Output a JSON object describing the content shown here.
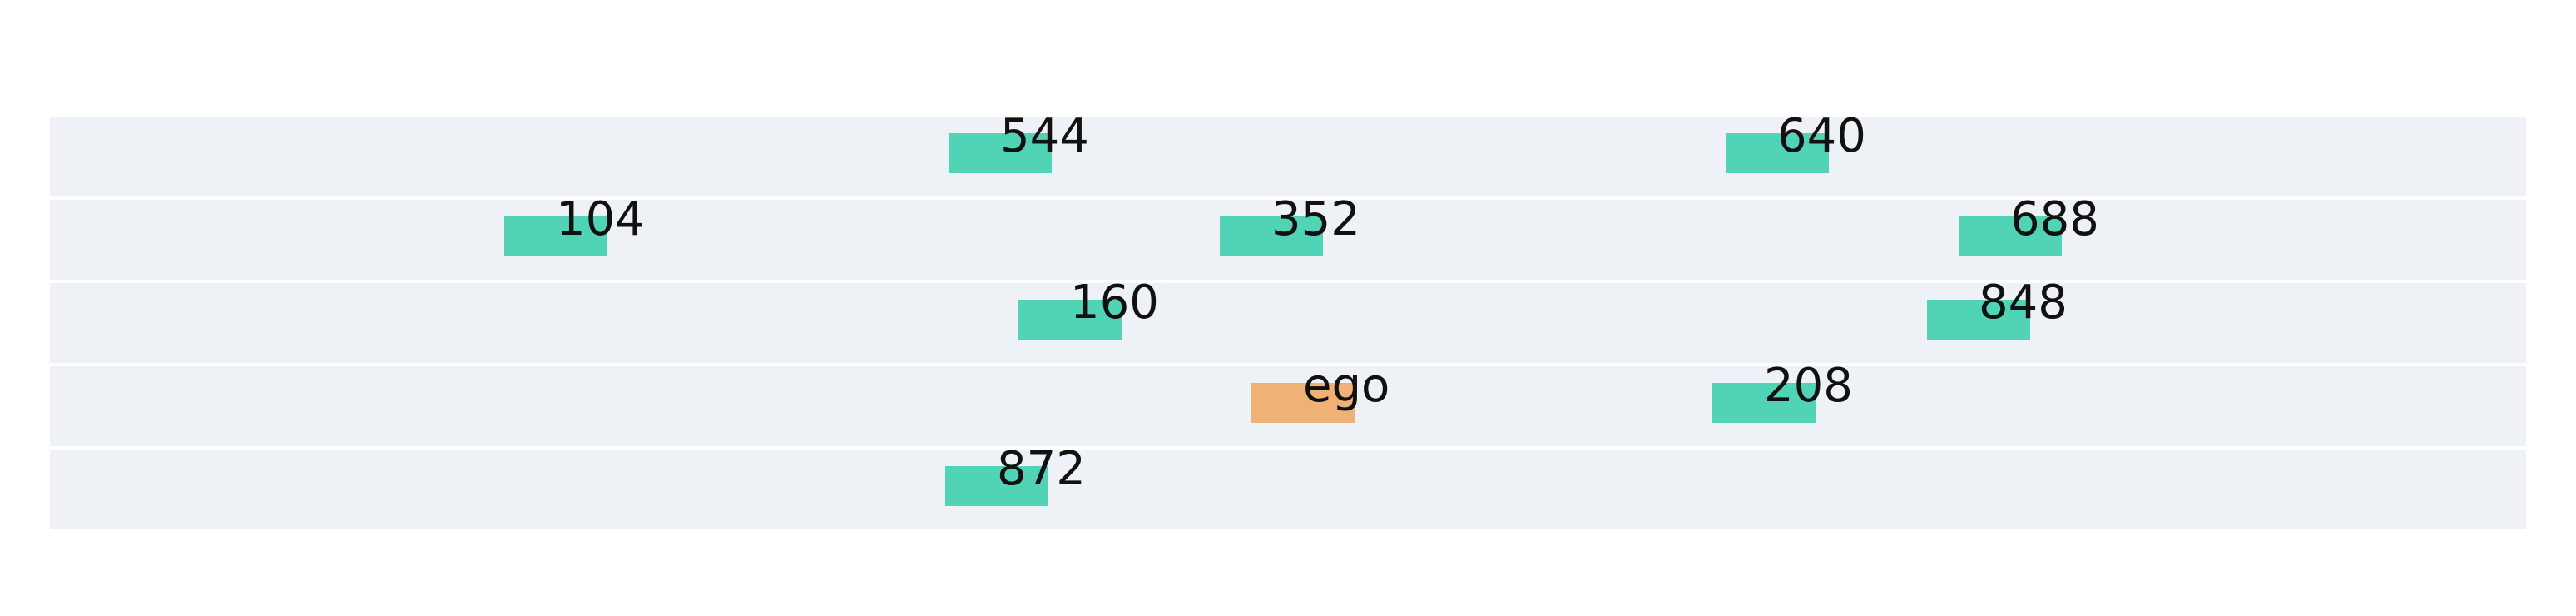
{
  "colors": {
    "lane_background": "#eef1f5",
    "vehicle_other": "#50d4b5",
    "vehicle_ego": "#efb174",
    "label_text": "#111111"
  },
  "lane_count": 5,
  "vehicles": [
    {
      "label": "544",
      "lane": 0,
      "kind": "other"
    },
    {
      "label": "640",
      "lane": 0,
      "kind": "other"
    },
    {
      "label": "104",
      "lane": 1,
      "kind": "other"
    },
    {
      "label": "352",
      "lane": 1,
      "kind": "other"
    },
    {
      "label": "688",
      "lane": 1,
      "kind": "other"
    },
    {
      "label": "160",
      "lane": 2,
      "kind": "other"
    },
    {
      "label": "848",
      "lane": 2,
      "kind": "other"
    },
    {
      "label": "ego",
      "lane": 3,
      "kind": "ego"
    },
    {
      "label": "208",
      "lane": 3,
      "kind": "other"
    },
    {
      "label": "872",
      "lane": 4,
      "kind": "other"
    }
  ]
}
